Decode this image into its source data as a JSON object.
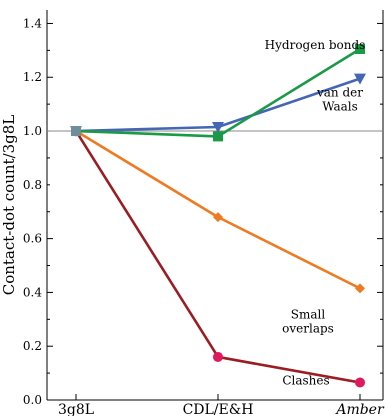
{
  "chart_data": {
    "type": "line",
    "title": "",
    "xlabel": "",
    "ylabel": "Contact-dot count/3g8L",
    "categories": [
      "3g8L",
      "CDL/E&H",
      "Amber"
    ],
    "ylim": [
      0,
      1.45
    ],
    "yticks": [
      0.0,
      0.2,
      0.4,
      0.6,
      0.8,
      1.0,
      1.2,
      1.4
    ],
    "ytick_labels": [
      "0.0",
      "0.2",
      "0.4",
      "0.6",
      "0.8",
      "1.0",
      "1.2",
      "1.4"
    ],
    "reference_line": 1.0,
    "grid": false,
    "legend": "none (direct labels)",
    "series": [
      {
        "name": "Hydrogen bonds",
        "label_lines": [
          "Hydrogen bonds"
        ],
        "values": [
          1.0,
          0.98,
          1.305
        ],
        "color": "#1a9a46",
        "marker": "square"
      },
      {
        "name": "van der Waals",
        "label_lines": [
          "van der",
          "Waals"
        ],
        "values": [
          1.0,
          1.015,
          1.195
        ],
        "color": "#4466b4",
        "marker": "triangle-down"
      },
      {
        "name": "Small overlaps",
        "label_lines": [
          "Small",
          "overlaps"
        ],
        "values": [
          1.0,
          0.68,
          0.415
        ],
        "color": "#f07a22",
        "marker": "diamond"
      },
      {
        "name": "Clashes",
        "label_lines": [
          "Clashes"
        ],
        "values": [
          1.0,
          0.16,
          0.065
        ],
        "color": "#9b1c22",
        "marker": "circle",
        "end_marker_color": "#e0185c"
      }
    ]
  }
}
